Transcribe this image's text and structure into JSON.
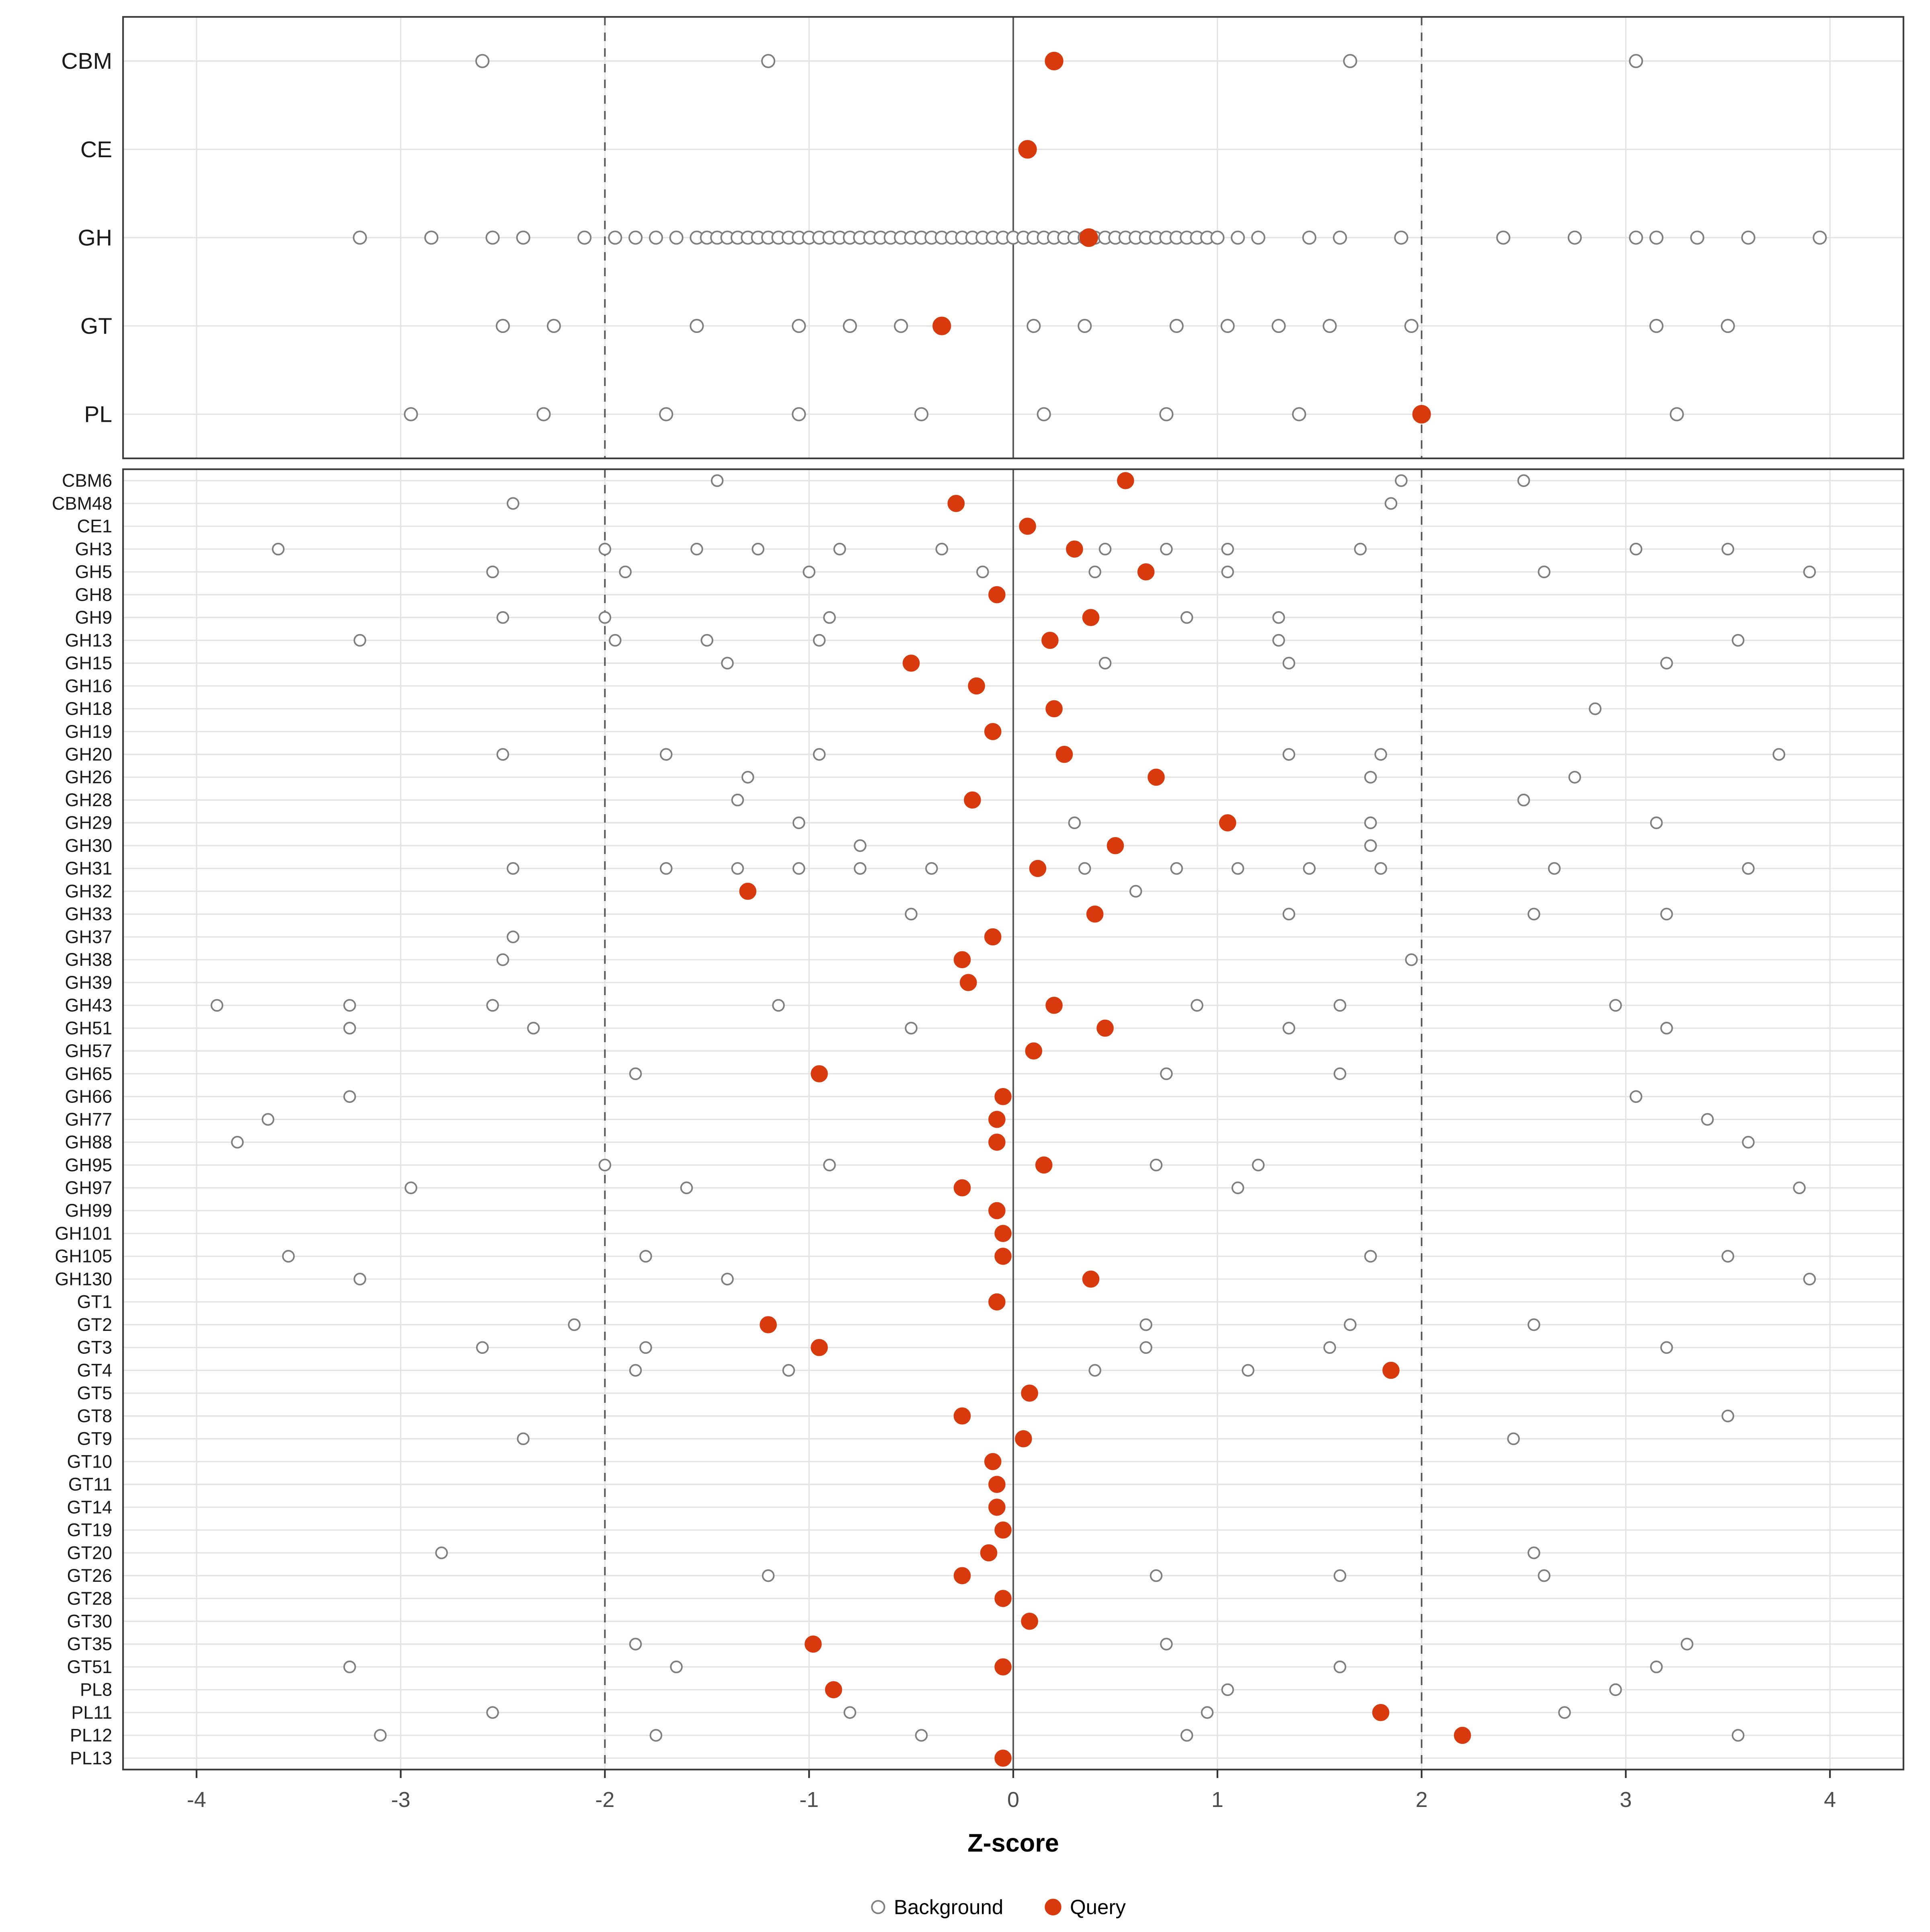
{
  "chart_data": {
    "type": "scatter",
    "title": "",
    "xlabel": "Z-score",
    "xlim": [
      -4.36,
      4.36
    ],
    "x_ticks": [
      -4,
      -3,
      -2,
      -1,
      0,
      1,
      2,
      3,
      4
    ],
    "ref_lines_dashed": [
      -2,
      2
    ],
    "ref_line_solid": 0,
    "grid": true,
    "legend_position": "bottom",
    "colors": {
      "query": "#D93A0D",
      "background_fill": "#FFFFFF",
      "background_stroke": "#7E7E7E",
      "grid": "#E3E3E3",
      "panel_border": "#3C3C3C",
      "ref_line": "#555555",
      "axis_text": "#4D4D4D",
      "label_text": "#1A1A1A"
    },
    "legend": {
      "items": [
        {
          "label": "Background",
          "style": "open"
        },
        {
          "label": "Query",
          "style": "filled"
        }
      ]
    },
    "panels": [
      {
        "name": "summary",
        "rows": [
          {
            "label": "CBM",
            "query": 0.2,
            "background": [
              -2.6,
              -1.2,
              1.65,
              3.05
            ]
          },
          {
            "label": "CE",
            "query": 0.07,
            "background": []
          },
          {
            "label": "GH",
            "query": 0.37,
            "background": [
              -3.2,
              -2.85,
              -2.55,
              -2.4,
              -2.1,
              -1.95,
              -1.85,
              -1.75,
              -1.65,
              -1.55,
              -1.5,
              -1.45,
              -1.4,
              -1.35,
              -1.3,
              -1.25,
              -1.2,
              -1.15,
              -1.1,
              -1.05,
              -1.0,
              -0.95,
              -0.9,
              -0.85,
              -0.8,
              -0.75,
              -0.7,
              -0.65,
              -0.6,
              -0.55,
              -0.5,
              -0.45,
              -0.4,
              -0.35,
              -0.3,
              -0.25,
              -0.2,
              -0.15,
              -0.1,
              -0.05,
              0,
              0.05,
              0.1,
              0.15,
              0.2,
              0.25,
              0.3,
              0.35,
              0.4,
              0.45,
              0.5,
              0.55,
              0.6,
              0.65,
              0.7,
              0.75,
              0.8,
              0.85,
              0.9,
              0.95,
              1.0,
              1.1,
              1.2,
              1.45,
              1.6,
              1.9,
              2.4,
              2.75,
              3.05,
              3.15,
              3.35,
              3.6,
              3.95
            ]
          },
          {
            "label": "GT",
            "query": -0.35,
            "background": [
              -2.5,
              -2.25,
              -1.55,
              -1.05,
              -0.8,
              -0.55,
              0.1,
              0.35,
              0.8,
              1.05,
              1.3,
              1.55,
              1.95,
              3.15,
              3.5
            ]
          },
          {
            "label": "PL",
            "query": 2.0,
            "background": [
              -2.95,
              -2.3,
              -1.7,
              -1.05,
              -0.45,
              0.15,
              0.75,
              1.4,
              3.25
            ]
          }
        ]
      },
      {
        "name": "families",
        "rows": [
          {
            "label": "CBM6",
            "query": 0.55,
            "background": [
              -1.45,
              1.9,
              2.5
            ]
          },
          {
            "label": "CBM48",
            "query": -0.28,
            "background": [
              -2.45,
              1.85
            ]
          },
          {
            "label": "CE1",
            "query": 0.07,
            "background": []
          },
          {
            "label": "GH3",
            "query": 0.3,
            "background": [
              -3.6,
              -2.0,
              -1.55,
              -1.25,
              -0.85,
              -0.35,
              0.45,
              0.75,
              1.05,
              1.7,
              3.05,
              3.5
            ]
          },
          {
            "label": "GH5",
            "query": 0.65,
            "background": [
              -2.55,
              -1.9,
              -1.0,
              -0.15,
              0.4,
              1.05,
              2.6,
              3.9
            ]
          },
          {
            "label": "GH8",
            "query": -0.08,
            "background": []
          },
          {
            "label": "GH9",
            "query": 0.38,
            "background": [
              -2.5,
              -2.0,
              -0.9,
              0.85,
              1.3
            ]
          },
          {
            "label": "GH13",
            "query": 0.18,
            "background": [
              -3.2,
              -1.95,
              -1.5,
              -0.95,
              1.3,
              3.55
            ]
          },
          {
            "label": "GH15",
            "query": -0.5,
            "background": [
              -1.4,
              0.45,
              1.35,
              3.2
            ]
          },
          {
            "label": "GH16",
            "query": -0.18,
            "background": []
          },
          {
            "label": "GH18",
            "query": 0.2,
            "background": [
              2.85
            ]
          },
          {
            "label": "GH19",
            "query": -0.1,
            "background": []
          },
          {
            "label": "GH20",
            "query": 0.25,
            "background": [
              -2.5,
              -1.7,
              -0.95,
              1.35,
              1.8,
              3.75
            ]
          },
          {
            "label": "GH26",
            "query": 0.7,
            "background": [
              -1.3,
              1.75,
              2.75
            ]
          },
          {
            "label": "GH28",
            "query": -0.2,
            "background": [
              -1.35,
              2.5
            ]
          },
          {
            "label": "GH29",
            "query": 1.05,
            "background": [
              -1.05,
              0.3,
              1.75,
              3.15
            ]
          },
          {
            "label": "GH30",
            "query": 0.5,
            "background": [
              -0.75,
              1.75
            ]
          },
          {
            "label": "GH31",
            "query": 0.12,
            "background": [
              -2.45,
              -1.7,
              -1.35,
              -1.05,
              -0.75,
              -0.4,
              0.35,
              0.8,
              1.1,
              1.45,
              1.8,
              2.65,
              3.6
            ]
          },
          {
            "label": "GH32",
            "query": -1.3,
            "background": [
              0.6
            ]
          },
          {
            "label": "GH33",
            "query": 0.4,
            "background": [
              -0.5,
              1.35,
              2.55,
              3.2
            ]
          },
          {
            "label": "GH37",
            "query": -0.1,
            "background": [
              -2.45
            ]
          },
          {
            "label": "GH38",
            "query": -0.25,
            "background": [
              -2.5,
              1.95
            ]
          },
          {
            "label": "GH39",
            "query": -0.22,
            "background": []
          },
          {
            "label": "GH43",
            "query": 0.2,
            "background": [
              -3.9,
              -3.25,
              -2.55,
              -1.15,
              0.9,
              1.6,
              2.95
            ]
          },
          {
            "label": "GH51",
            "query": 0.45,
            "background": [
              -3.25,
              -2.35,
              -0.5,
              1.35,
              3.2
            ]
          },
          {
            "label": "GH57",
            "query": 0.1,
            "background": []
          },
          {
            "label": "GH65",
            "query": -0.95,
            "background": [
              -1.85,
              0.75,
              1.6
            ]
          },
          {
            "label": "GH66",
            "query": -0.05,
            "background": [
              -3.25,
              3.05
            ]
          },
          {
            "label": "GH77",
            "query": -0.08,
            "background": [
              -3.65,
              3.4
            ]
          },
          {
            "label": "GH88",
            "query": -0.08,
            "background": [
              -3.8,
              3.6
            ]
          },
          {
            "label": "GH95",
            "query": 0.15,
            "background": [
              -2.0,
              -0.9,
              0.7,
              1.2
            ]
          },
          {
            "label": "GH97",
            "query": -0.25,
            "background": [
              -2.95,
              -1.6,
              1.1,
              3.85
            ]
          },
          {
            "label": "GH99",
            "query": -0.08,
            "background": []
          },
          {
            "label": "GH101",
            "query": -0.05,
            "background": []
          },
          {
            "label": "GH105",
            "query": -0.05,
            "background": [
              -3.55,
              -1.8,
              1.75,
              3.5
            ]
          },
          {
            "label": "GH130",
            "query": 0.38,
            "background": [
              -3.2,
              -1.4,
              3.9
            ]
          },
          {
            "label": "GT1",
            "query": -0.08,
            "background": []
          },
          {
            "label": "GT2",
            "query": -1.2,
            "background": [
              -2.15,
              0.65,
              1.65,
              2.55
            ]
          },
          {
            "label": "GT3",
            "query": -0.95,
            "background": [
              -2.6,
              -1.8,
              0.65,
              1.55,
              3.2
            ]
          },
          {
            "label": "GT4",
            "query": 1.85,
            "background": [
              -1.85,
              -1.1,
              0.4,
              1.15
            ]
          },
          {
            "label": "GT5",
            "query": 0.08,
            "background": []
          },
          {
            "label": "GT8",
            "query": -0.25,
            "background": [
              3.5
            ]
          },
          {
            "label": "GT9",
            "query": 0.05,
            "background": [
              -2.4,
              2.45
            ]
          },
          {
            "label": "GT10",
            "query": -0.1,
            "background": []
          },
          {
            "label": "GT11",
            "query": -0.08,
            "background": []
          },
          {
            "label": "GT14",
            "query": -0.08,
            "background": []
          },
          {
            "label": "GT19",
            "query": -0.05,
            "background": []
          },
          {
            "label": "GT20",
            "query": -0.12,
            "background": [
              -2.8,
              2.55
            ]
          },
          {
            "label": "GT26",
            "query": -0.25,
            "background": [
              -1.2,
              0.7,
              1.6,
              2.6
            ]
          },
          {
            "label": "GT28",
            "query": -0.05,
            "background": []
          },
          {
            "label": "GT30",
            "query": 0.08,
            "background": []
          },
          {
            "label": "GT35",
            "query": -0.98,
            "background": [
              -1.85,
              0.75,
              3.3
            ]
          },
          {
            "label": "GT51",
            "query": -0.05,
            "background": [
              -3.25,
              -1.65,
              1.6,
              3.15
            ]
          },
          {
            "label": "PL8",
            "query": -0.88,
            "background": [
              1.05,
              2.95
            ]
          },
          {
            "label": "PL11",
            "query": 1.8,
            "background": [
              -2.55,
              -0.8,
              0.95,
              2.7
            ]
          },
          {
            "label": "PL12",
            "query": 2.2,
            "background": [
              -3.1,
              -1.75,
              -0.45,
              0.85,
              3.55
            ]
          },
          {
            "label": "PL13",
            "query": -0.05,
            "background": []
          }
        ]
      }
    ]
  }
}
